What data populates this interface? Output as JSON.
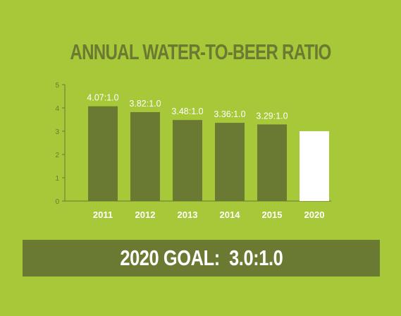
{
  "chart_data": {
    "type": "bar",
    "title": "ANNUAL WATER-TO-BEER RATIO",
    "categories": [
      "2011",
      "2012",
      "2013",
      "2014",
      "2015",
      "2020"
    ],
    "values": [
      4.07,
      3.82,
      3.48,
      3.36,
      3.29,
      3.0
    ],
    "data_labels": [
      "4.07:1.0",
      "3.82:1.0",
      "3.48:1.0",
      "3.36:1.0",
      "3.29:1.0",
      ""
    ],
    "y_ticks": [
      "0",
      "1",
      "2",
      "3",
      "4",
      "5"
    ],
    "ylim": [
      0,
      5
    ],
    "xlabel": "",
    "ylabel": "",
    "grid": false,
    "colors": {
      "background": "#a7c838",
      "bar": "#6a7a33",
      "goal_bar": "#ffffff",
      "axis": "#6a7a33",
      "label": "#ffffff"
    }
  },
  "goal": {
    "text": "2020 GOAL:  3.0:1.0"
  }
}
